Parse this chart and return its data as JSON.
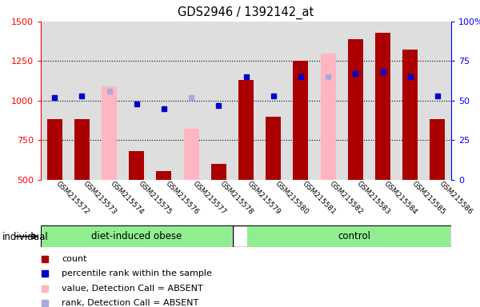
{
  "title": "GDS2946 / 1392142_at",
  "samples": [
    "GSM215572",
    "GSM215573",
    "GSM215574",
    "GSM215575",
    "GSM215576",
    "GSM215577",
    "GSM215578",
    "GSM215579",
    "GSM215580",
    "GSM215581",
    "GSM215582",
    "GSM215583",
    "GSM215584",
    "GSM215585",
    "GSM215586"
  ],
  "count_values": [
    880,
    882,
    null,
    680,
    555,
    null,
    600,
    1130,
    900,
    1250,
    null,
    1390,
    1430,
    1320,
    880
  ],
  "absent_bar_values": [
    null,
    null,
    1090,
    null,
    null,
    820,
    null,
    null,
    null,
    null,
    1295,
    null,
    null,
    null,
    null
  ],
  "rank_values": [
    52,
    53,
    null,
    48,
    45,
    null,
    47,
    65,
    53,
    65,
    null,
    67,
    68,
    65,
    53
  ],
  "absent_rank_values": [
    null,
    null,
    56,
    null,
    null,
    52,
    null,
    null,
    null,
    null,
    65,
    null,
    null,
    null,
    null
  ],
  "ylim_left": [
    500,
    1500
  ],
  "ylim_right": [
    0,
    100
  ],
  "yticks_left": [
    500,
    750,
    1000,
    1250,
    1500
  ],
  "yticks_right": [
    0,
    25,
    50,
    75,
    100
  ],
  "bar_color_present": "#AA0000",
  "bar_color_absent": "#FFB6C1",
  "rank_color_present": "#0000CC",
  "rank_color_absent": "#AAAADD",
  "bg_color": "#DEDEDE",
  "group_color": "#90EE90",
  "legend_items": [
    "count",
    "percentile rank within the sample",
    "value, Detection Call = ABSENT",
    "rank, Detection Call = ABSENT"
  ]
}
